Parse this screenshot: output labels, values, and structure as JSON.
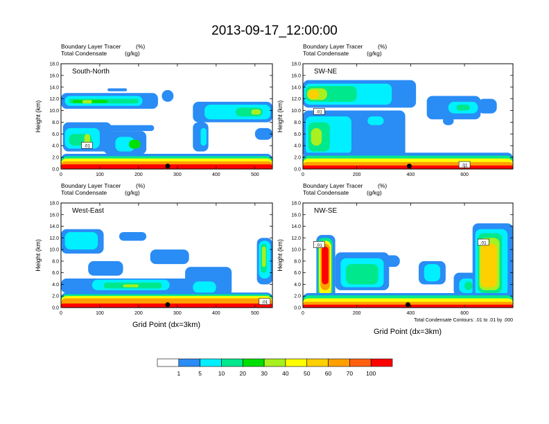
{
  "chart_data": {
    "type": "heatmap",
    "title": "2013-09-17_12:00:00",
    "panel_left_title": "Boundary Layer Tracer",
    "panel_left_unit": "(%)",
    "panel_right_title": "Total Condensate",
    "panel_right_unit": "(g/kg)",
    "ylabel": "Height (km)",
    "xlabel": "Grid Point (dx=3km)",
    "contour_note": "Total Condensate Contours: .01 to .01 by .000",
    "contour_label": ".01",
    "y_ticks": [
      "0.0",
      "2.0",
      "4.0",
      "6.0",
      "8.0",
      "10.0",
      "12.0",
      "14.0",
      "16.0",
      "18.0"
    ],
    "ylim": [
      0,
      18
    ],
    "panels": [
      {
        "name": "South-North",
        "xlim": [
          0,
          545
        ],
        "x_ticks": [
          0,
          100,
          200,
          300,
          400,
          500
        ],
        "marker": [
          275,
          0.5
        ],
        "contour_labels": [
          [
            67,
            4.0
          ]
        ],
        "blobs": [
          [
            0,
            250,
            10.3,
            13.0,
            1
          ],
          [
            10,
            210,
            10.8,
            12.5,
            2
          ],
          [
            20,
            200,
            11.2,
            12.0,
            3
          ],
          [
            30,
            120,
            11.3,
            11.8,
            4
          ],
          [
            55,
            80,
            11.2,
            11.8,
            5
          ],
          [
            5,
            130,
            3.0,
            8.0,
            1
          ],
          [
            10,
            100,
            3.5,
            7.0,
            2
          ],
          [
            20,
            80,
            4.0,
            6.0,
            3
          ],
          [
            60,
            75,
            4.0,
            6.0,
            5
          ],
          [
            110,
            220,
            2.5,
            6.5,
            1
          ],
          [
            140,
            190,
            3.0,
            5.5,
            2
          ],
          [
            175,
            205,
            3.5,
            5.0,
            4
          ],
          [
            100,
            240,
            6.5,
            7.5,
            1
          ],
          [
            340,
            545,
            8.0,
            11.5,
            1
          ],
          [
            370,
            540,
            8.5,
            11.0,
            2
          ],
          [
            450,
            520,
            9.0,
            10.5,
            3
          ],
          [
            490,
            515,
            9.3,
            10.2,
            5
          ],
          [
            340,
            380,
            3.0,
            8.0,
            1
          ],
          [
            360,
            375,
            4.0,
            7.0,
            2
          ],
          [
            500,
            545,
            5.0,
            7.0,
            1
          ],
          [
            120,
            170,
            13.3,
            13.8,
            1
          ],
          [
            260,
            290,
            11.5,
            13.5,
            1
          ],
          [
            0,
            545,
            0,
            2.6,
            1
          ],
          [
            0,
            545,
            0,
            2.2,
            3
          ],
          [
            0,
            545,
            0,
            1.8,
            6
          ],
          [
            0,
            545,
            0,
            1.3,
            8
          ],
          [
            0,
            545,
            0,
            0.8,
            10
          ]
        ]
      },
      {
        "name": "SW-NE",
        "xlim": [
          0,
          780
        ],
        "x_ticks": [
          0,
          200,
          400,
          600
        ],
        "marker": [
          395,
          0.5
        ],
        "contour_labels": [
          [
            60,
            9.8
          ],
          [
            600,
            0.7
          ]
        ],
        "blobs": [
          [
            0,
            420,
            10.5,
            15.2,
            1
          ],
          [
            5,
            330,
            11.0,
            14.6,
            2
          ],
          [
            10,
            200,
            11.5,
            14.2,
            3
          ],
          [
            15,
            90,
            11.8,
            13.8,
            5
          ],
          [
            20,
            60,
            12.0,
            13.5,
            7
          ],
          [
            0,
            380,
            2.0,
            10.0,
            1
          ],
          [
            10,
            180,
            2.5,
            9.0,
            2
          ],
          [
            20,
            100,
            3.0,
            8.0,
            3
          ],
          [
            30,
            70,
            4.0,
            7.0,
            5
          ],
          [
            230,
            310,
            7.0,
            10.0,
            1
          ],
          [
            240,
            300,
            7.5,
            9.0,
            2
          ],
          [
            460,
            660,
            8.5,
            12.5,
            1
          ],
          [
            540,
            650,
            9.5,
            11.5,
            2
          ],
          [
            570,
            620,
            10.0,
            11.0,
            3
          ],
          [
            650,
            720,
            9.5,
            12.0,
            1
          ],
          [
            520,
            560,
            7.5,
            9.0,
            1
          ],
          [
            0,
            780,
            0,
            2.8,
            1
          ],
          [
            0,
            780,
            0,
            2.3,
            3
          ],
          [
            0,
            780,
            0,
            1.8,
            6
          ],
          [
            0,
            780,
            0,
            1.2,
            8
          ],
          [
            0,
            780,
            0,
            0.6,
            10
          ]
        ]
      },
      {
        "name": "West-East",
        "xlim": [
          0,
          545
        ],
        "x_ticks": [
          0,
          100,
          200,
          300,
          400,
          500
        ],
        "marker": [
          275,
          0.5
        ],
        "contour_labels": [
          [
            525,
            1.0
          ]
        ],
        "blobs": [
          [
            0,
            110,
            9.3,
            13.5,
            1
          ],
          [
            10,
            95,
            10.0,
            13.0,
            2
          ],
          [
            150,
            220,
            11.5,
            13.0,
            1
          ],
          [
            70,
            160,
            5.5,
            8.0,
            1
          ],
          [
            0,
            420,
            2.5,
            5.0,
            1
          ],
          [
            80,
            280,
            3.0,
            4.8,
            2
          ],
          [
            110,
            260,
            3.3,
            4.3,
            3
          ],
          [
            160,
            200,
            3.5,
            4.0,
            5
          ],
          [
            230,
            330,
            7.5,
            10.0,
            1
          ],
          [
            320,
            440,
            2.0,
            7.0,
            1
          ],
          [
            340,
            400,
            2.5,
            4.5,
            2
          ],
          [
            505,
            545,
            4.0,
            12.0,
            1
          ],
          [
            510,
            540,
            5.0,
            11.5,
            2
          ],
          [
            515,
            530,
            6.0,
            11.0,
            3
          ],
          [
            518,
            528,
            7.0,
            10.5,
            5
          ],
          [
            0,
            545,
            0,
            2.6,
            1
          ],
          [
            0,
            545,
            0,
            2.3,
            3
          ],
          [
            0,
            545,
            0,
            2.0,
            6
          ],
          [
            0,
            545,
            0,
            1.6,
            8
          ],
          [
            0,
            545,
            0,
            0.7,
            10
          ]
        ]
      },
      {
        "name": "NW-SE",
        "xlim": [
          0,
          780
        ],
        "x_ticks": [
          0,
          200,
          400,
          600
        ],
        "marker": [
          390,
          0.5
        ],
        "contour_labels": [
          [
            60,
            10.8
          ],
          [
            670,
            11.2
          ]
        ],
        "blobs": [
          [
            50,
            120,
            1.0,
            12.5,
            1
          ],
          [
            55,
            110,
            1.5,
            12.0,
            3
          ],
          [
            60,
            105,
            2.0,
            11.5,
            6
          ],
          [
            65,
            100,
            3.0,
            11.0,
            8
          ],
          [
            70,
            95,
            4.0,
            10.5,
            10
          ],
          [
            120,
            320,
            3.0,
            9.5,
            1
          ],
          [
            140,
            300,
            3.5,
            8.5,
            2
          ],
          [
            160,
            280,
            4.0,
            7.5,
            3
          ],
          [
            300,
            360,
            7.0,
            9.0,
            1
          ],
          [
            430,
            530,
            4.0,
            8.0,
            1
          ],
          [
            450,
            510,
            4.5,
            7.5,
            2
          ],
          [
            560,
            650,
            2.0,
            6.0,
            1
          ],
          [
            580,
            640,
            2.5,
            5.0,
            2
          ],
          [
            600,
            630,
            3.0,
            4.5,
            3
          ],
          [
            630,
            780,
            1.5,
            14.5,
            1
          ],
          [
            640,
            760,
            2.0,
            13.5,
            2
          ],
          [
            650,
            740,
            2.5,
            12.8,
            3
          ],
          [
            655,
            730,
            3.0,
            12.0,
            5
          ],
          [
            660,
            720,
            3.5,
            11.0,
            7
          ],
          [
            0,
            780,
            0,
            2.5,
            1
          ],
          [
            0,
            780,
            0,
            2.1,
            3
          ],
          [
            0,
            780,
            0,
            1.6,
            6
          ],
          [
            0,
            780,
            0,
            1.0,
            8
          ],
          [
            0,
            780,
            0,
            0.5,
            10
          ]
        ]
      }
    ],
    "colorbar": {
      "colors": [
        "#ffffff",
        "#2a8cf5",
        "#00f0ff",
        "#00e88c",
        "#00e000",
        "#a8f020",
        "#ffff00",
        "#ffd000",
        "#ffa000",
        "#ff6010",
        "#ff0000"
      ],
      "labels": [
        "1",
        "5",
        "10",
        "20",
        "30",
        "40",
        "50",
        "60",
        "70",
        "100"
      ]
    }
  }
}
